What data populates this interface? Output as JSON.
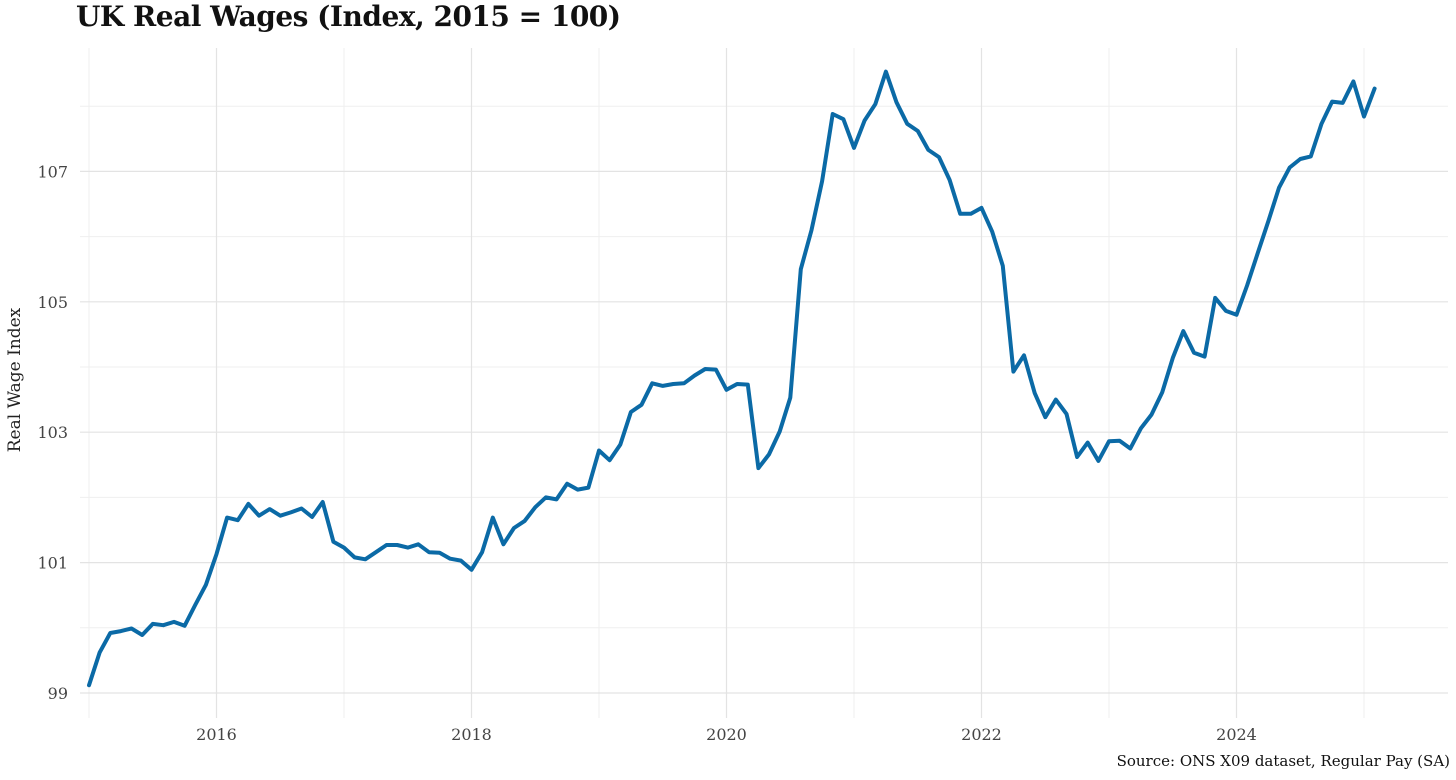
{
  "chart_data": {
    "type": "line",
    "title": "UK Real Wages (Index, 2015 = 100)",
    "xlabel": "",
    "ylabel": "Real Wage Index",
    "source": "Source: ONS X09 dataset, Regular Pay (SA)",
    "xlim": [
      2015.0,
      2025.5
    ],
    "ylim": [
      98.7,
      108.8
    ],
    "x_ticks": [
      2016,
      2018,
      2020,
      2022,
      2024
    ],
    "y_ticks": [
      99,
      101,
      103,
      105,
      107
    ],
    "grid": true,
    "legend": "none",
    "line_color": "#0b6aa6",
    "series": [
      {
        "x": [
          2015.0,
          2015.083,
          2015.167,
          2015.25,
          2015.333,
          2015.417,
          2015.5,
          2015.583,
          2015.667,
          2015.75,
          2015.833,
          2015.917,
          2016.0,
          2016.083,
          2016.167,
          2016.25,
          2016.333,
          2016.417,
          2016.5,
          2016.583,
          2016.667,
          2016.75,
          2016.833,
          2016.917,
          2017.0,
          2017.083,
          2017.167,
          2017.25,
          2017.333,
          2017.417,
          2017.5,
          2017.583,
          2017.667,
          2017.75,
          2017.833,
          2017.917,
          2018.0,
          2018.083,
          2018.167,
          2018.25,
          2018.333,
          2018.417,
          2018.5,
          2018.583,
          2018.667,
          2018.75,
          2018.833,
          2018.917,
          2019.0,
          2019.083,
          2019.167,
          2019.25,
          2019.333,
          2019.417,
          2019.5,
          2019.583,
          2019.667,
          2019.75,
          2019.833,
          2019.917,
          2020.0,
          2020.083,
          2020.167,
          2020.25,
          2020.333,
          2020.417,
          2020.5,
          2020.583,
          2020.667,
          2020.75,
          2020.833,
          2020.917,
          2021.0,
          2021.083,
          2021.167,
          2021.25,
          2021.333,
          2021.417,
          2021.5,
          2021.583,
          2021.667,
          2021.75,
          2021.833,
          2021.917,
          2022.0,
          2022.083,
          2022.167,
          2022.25,
          2022.333,
          2022.417,
          2022.5,
          2022.583,
          2022.667,
          2022.75,
          2022.833,
          2022.917,
          2023.0,
          2023.083,
          2023.167,
          2023.25,
          2023.333,
          2023.417,
          2023.5,
          2023.583,
          2023.667,
          2023.75,
          2023.833,
          2023.917,
          2024.0,
          2024.083,
          2024.167,
          2024.25,
          2024.333,
          2024.417,
          2024.5,
          2024.583,
          2024.667,
          2024.75,
          2024.833,
          2024.917,
          2025.0,
          2025.083
        ],
        "values": [
          99.12,
          99.62,
          99.92,
          99.95,
          99.99,
          99.89,
          100.06,
          100.04,
          100.09,
          100.03,
          100.35,
          100.66,
          101.13,
          101.69,
          101.65,
          101.9,
          101.72,
          101.82,
          101.72,
          101.77,
          101.83,
          101.7,
          101.93,
          101.32,
          101.23,
          101.08,
          101.05,
          101.16,
          101.27,
          101.27,
          101.23,
          101.28,
          101.16,
          101.15,
          101.06,
          101.03,
          100.89,
          101.16,
          101.69,
          101.28,
          101.53,
          101.64,
          101.85,
          102.0,
          101.97,
          102.21,
          102.12,
          102.15,
          102.72,
          102.57,
          102.81,
          103.31,
          103.42,
          103.75,
          103.71,
          103.74,
          103.75,
          103.87,
          103.97,
          103.96,
          103.65,
          103.74,
          103.73,
          102.45,
          102.66,
          103.01,
          103.53,
          105.5,
          106.1,
          106.85,
          107.88,
          107.8,
          107.36,
          107.78,
          108.03,
          108.53,
          108.06,
          107.73,
          107.62,
          107.33,
          107.22,
          106.87,
          106.35,
          106.35,
          106.44,
          106.08,
          105.55,
          103.93,
          104.18,
          103.6,
          103.23,
          103.5,
          103.28,
          102.62,
          102.84,
          102.56,
          102.86,
          102.87,
          102.75,
          103.06,
          103.27,
          103.61,
          104.14,
          104.55,
          104.22,
          104.16,
          105.06,
          104.86,
          104.8,
          105.25,
          105.75,
          106.24,
          106.75,
          107.06,
          107.19,
          107.23,
          107.73,
          108.07,
          108.05,
          108.38,
          107.84,
          108.27
        ]
      }
    ]
  }
}
